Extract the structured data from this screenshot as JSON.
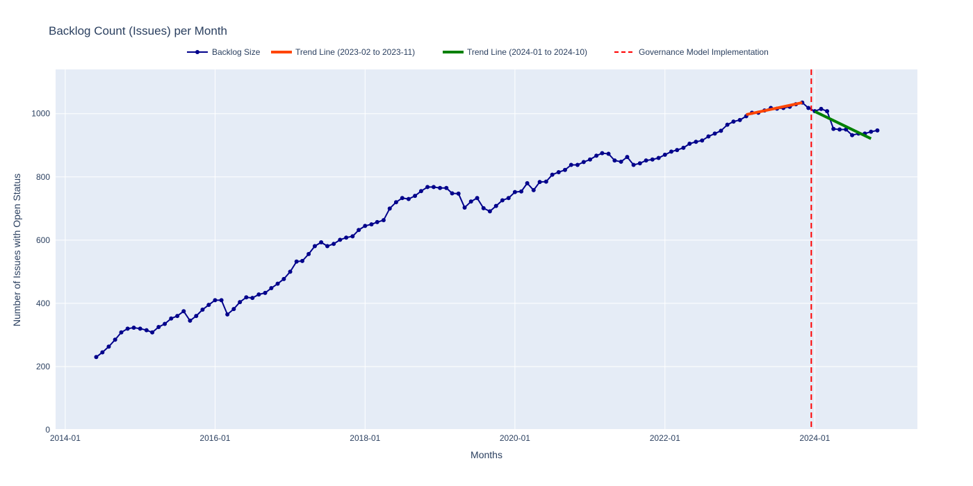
{
  "colors": {
    "plot_bg": "#E5ECF6",
    "grid": "#ffffff",
    "text": "#2a3f5f",
    "backlog": "#00008B",
    "trend1": "#FF4500",
    "trend2": "#008000",
    "vline": "#FF0000"
  },
  "chart_data": {
    "type": "line",
    "title": "Backlog Count (Issues) per Month",
    "xlabel": "Months",
    "ylabel": "Number of Issues with Open Status",
    "xlim": [
      "2013-11-15",
      "2025-05-15"
    ],
    "ylim": [
      0,
      1140
    ],
    "x_ticks": [
      "2014-01",
      "2016-01",
      "2018-01",
      "2020-01",
      "2022-01",
      "2024-01"
    ],
    "y_ticks": [
      0,
      200,
      400,
      600,
      800,
      1000
    ],
    "grid": true,
    "legend_position": "top-center",
    "legend": [
      "Backlog Size",
      "Trend Line (2023-02 to 2023-11)",
      "Trend Line (2024-01 to 2024-10)",
      "Governance Model Implementation"
    ],
    "series": [
      {
        "name": "Backlog Size",
        "mode": "lines+markers",
        "start": "2014-06",
        "values": [
          230,
          245,
          263,
          285,
          308,
          320,
          323,
          320,
          315,
          308,
          325,
          335,
          352,
          360,
          375,
          345,
          360,
          380,
          395,
          410,
          410,
          365,
          382,
          404,
          419,
          417,
          428,
          433,
          448,
          462,
          477,
          500,
          532,
          534,
          556,
          581,
          593,
          581,
          588,
          601,
          608,
          612,
          632,
          645,
          650,
          657,
          663,
          700,
          720,
          733,
          730,
          740,
          755,
          768,
          768,
          765,
          765,
          748,
          747,
          703,
          722,
          733,
          701,
          691,
          708,
          726,
          733,
          752,
          754,
          780,
          758,
          784,
          785,
          807,
          815,
          822,
          838,
          838,
          847,
          855,
          867,
          875,
          873,
          852,
          848,
          863,
          838,
          843,
          852,
          855,
          860,
          870,
          880,
          885,
          892,
          905,
          911,
          915,
          928,
          937,
          946,
          965,
          975,
          980,
          992,
          1003,
          1003,
          1010,
          1018,
          1016,
          1018,
          1022,
          1030,
          1035,
          1018,
          1008,
          1015,
          1008,
          952,
          950,
          950,
          932,
          937,
          937,
          943,
          947
        ]
      },
      {
        "name": "Trend Line (2023-02 to 2023-11)",
        "mode": "lines",
        "x": [
          "2023-02",
          "2023-11"
        ],
        "y": [
          997,
          1035
        ]
      },
      {
        "name": "Trend Line (2024-01 to 2024-10)",
        "mode": "lines",
        "x": [
          "2024-01",
          "2024-10"
        ],
        "y": [
          1007,
          921
        ]
      }
    ],
    "vline": {
      "name": "Governance Model Implementation",
      "x": "2023-12-15"
    }
  }
}
